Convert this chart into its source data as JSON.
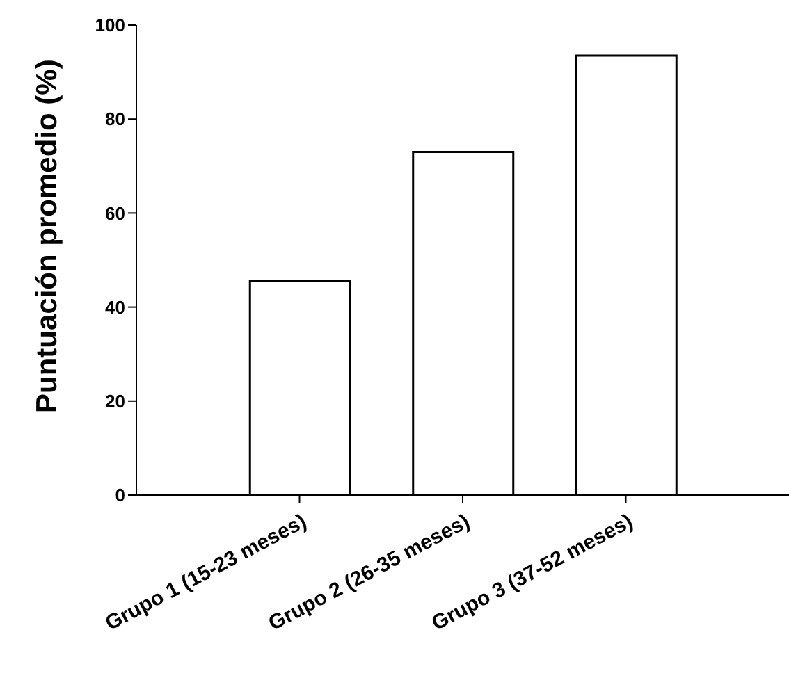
{
  "chart_data": {
    "type": "bar",
    "ylabel": "Puntuación promedio (%)",
    "categories": [
      "Grupo 1 (15-23 meses)",
      "Grupo 2 (26-35 meses)",
      "Grupo 3 (37-52 meses)"
    ],
    "values": [
      45.5,
      73,
      93.5
    ],
    "color": "#ffffff",
    "ylim": [
      0,
      100
    ],
    "yticks": [
      0,
      20,
      40,
      60,
      80,
      100
    ],
    "grid": false,
    "legend": false
  }
}
